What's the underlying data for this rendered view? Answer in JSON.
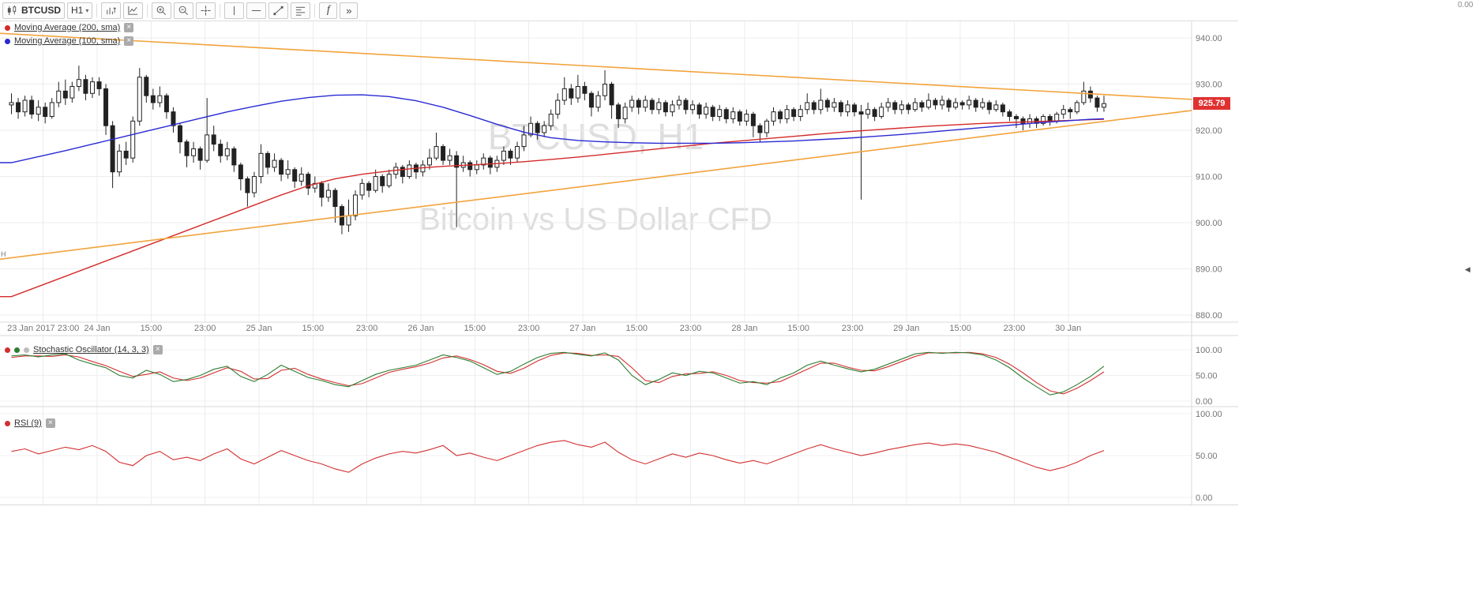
{
  "ui": {
    "close_glyph": "×",
    "caret": "▾"
  },
  "toolbar": {
    "symbol": "BTCUSD",
    "timeframe": "H1",
    "indicator_button": "f",
    "more_button": "»",
    "icons": [
      "candlestick-icon",
      "chevron-down-icon",
      "bar-chart-icon",
      "line-chart-icon",
      "zoom-in-icon",
      "zoom-out-icon",
      "crosshair-icon",
      "vertical-line-icon",
      "horizontal-line-icon",
      "trend-line-icon",
      "fibonacci-icon",
      "indicators-icon",
      "double-arrow-icon"
    ]
  },
  "main_chart": {
    "legend": [
      {
        "label": "Moving Average (200, sma)",
        "color": "#d42a2a"
      },
      {
        "label": "Moving Average (100, sma)",
        "color": "#2a2ad4"
      }
    ],
    "watermark_title": "BTCUSD, H1",
    "watermark_subtitle": "Bitcoin vs US Dollar CFD",
    "price_tag": "925.79",
    "price_axis": [
      "940.00",
      "930.00",
      "920.00",
      "910.00",
      "900.00",
      "890.00",
      "880.00"
    ],
    "time_axis": [
      "23 Jan 2017 23:00",
      "24 Jan",
      "15:00",
      "23:00",
      "25 Jan",
      "15:00",
      "23:00",
      "26 Jan",
      "15:00",
      "23:00",
      "27 Jan",
      "15:00",
      "23:00",
      "28 Jan",
      "15:00",
      "23:00",
      "29 Jan",
      "15:00",
      "23:00",
      "30 Jan"
    ]
  },
  "stochastic_panel": {
    "label": "Stochastic Oscillator (14, 3, 3)",
    "scale": [
      "100.00",
      "50.00",
      "0.00"
    ],
    "colors": {
      "k": "#2e7d32",
      "d": "#d32f2f",
      "extra_dot": "#bdbdbd"
    }
  },
  "rsi_panel": {
    "label": "RSI (9)",
    "scale": [
      "100.00",
      "50.00",
      "0.00"
    ],
    "color": "#d32f2f"
  },
  "edge_artifacts": {
    "top_right_label": "0.00",
    "right_marker": "◀",
    "left_marker": "H"
  },
  "chart_data": {
    "type": "candlestick",
    "symbol": "BTCUSD",
    "timeframe": "H1",
    "title": "Bitcoin vs US Dollar CFD",
    "last_price": 925.79,
    "price_axis_values": [
      940,
      930,
      920,
      910,
      900,
      890,
      880
    ],
    "price_range_visible": [
      878.5,
      943.6
    ],
    "osc_range": [
      0,
      100
    ],
    "candles_per_gridline": 8,
    "first_gridline_candle_index": 5,
    "time_labels": [
      "23 Jan 2017 23:00",
      "24 Jan",
      "15:00",
      "23:00",
      "25 Jan",
      "15:00",
      "23:00",
      "26 Jan",
      "15:00",
      "23:00",
      "27 Jan",
      "15:00",
      "23:00",
      "28 Jan",
      "15:00",
      "23:00",
      "29 Jan",
      "15:00",
      "23:00",
      "30 Jan"
    ],
    "candles": [
      [
        925.5,
        928,
        923.5,
        926
      ],
      [
        926,
        927,
        922.5,
        924
      ],
      [
        924,
        927.5,
        923,
        926.5
      ],
      [
        926.5,
        927.5,
        922.5,
        923.5
      ],
      [
        923.5,
        926.5,
        922,
        925
      ],
      [
        925,
        926,
        921.5,
        923
      ],
      [
        923,
        927,
        922.5,
        926
      ],
      [
        926,
        930.5,
        925,
        928.5
      ],
      [
        928.5,
        931,
        925.5,
        927
      ],
      [
        927,
        930.5,
        926,
        929.5
      ],
      [
        929.5,
        934,
        928.5,
        931
      ],
      [
        931,
        932,
        926.5,
        928
      ],
      [
        928,
        931.5,
        927,
        930.5
      ],
      [
        930.5,
        931.5,
        927.5,
        929
      ],
      [
        929,
        930,
        919,
        921
      ],
      [
        921,
        922,
        907.5,
        911
      ],
      [
        911,
        917,
        910,
        915.5
      ],
      [
        915.5,
        917.5,
        912.5,
        914
      ],
      [
        914,
        923,
        913,
        922
      ],
      [
        922,
        933.5,
        921,
        931.5
      ],
      [
        931.5,
        932,
        926,
        927.5
      ],
      [
        927.5,
        929,
        924.5,
        926
      ],
      [
        926,
        929.5,
        925,
        927.5
      ],
      [
        927.5,
        928,
        922.5,
        924
      ],
      [
        924,
        925,
        919.5,
        921
      ],
      [
        921,
        921.5,
        915,
        917.5
      ],
      [
        917.5,
        918,
        912,
        914.5
      ],
      [
        914.5,
        917.5,
        913,
        916
      ],
      [
        916,
        916.5,
        911.5,
        913.5
      ],
      [
        913.5,
        927,
        913,
        919
      ],
      [
        919,
        921,
        915.5,
        917
      ],
      [
        917,
        918,
        913,
        914.5
      ],
      [
        914.5,
        917.5,
        913.5,
        916
      ],
      [
        916,
        916.5,
        911,
        912.5
      ],
      [
        912.5,
        913,
        907,
        909.5
      ],
      [
        909.5,
        910,
        903.5,
        906.5
      ],
      [
        906.5,
        911,
        905.5,
        910
      ],
      [
        910,
        917,
        908.5,
        915
      ],
      [
        915,
        915.5,
        910.5,
        912
      ],
      [
        912,
        915,
        911,
        913.5
      ],
      [
        913.5,
        914,
        909,
        910.5
      ],
      [
        910.5,
        913.5,
        909.5,
        911.5
      ],
      [
        911.5,
        912,
        907.5,
        909
      ],
      [
        909,
        912,
        908,
        910.5
      ],
      [
        910.5,
        911,
        906,
        907.5
      ],
      [
        907.5,
        910,
        906.5,
        908.5
      ],
      [
        908.5,
        909,
        903.5,
        905.5
      ],
      [
        905.5,
        908.5,
        904.5,
        907
      ],
      [
        907,
        907.5,
        900,
        903.5
      ],
      [
        903.5,
        904,
        897.5,
        899.5
      ],
      [
        899.5,
        905,
        898,
        901.5
      ],
      [
        901.5,
        907,
        900.5,
        906
      ],
      [
        906,
        909.5,
        905,
        908.5
      ],
      [
        908.5,
        909,
        905.5,
        907
      ],
      [
        907,
        911.5,
        906.5,
        910
      ],
      [
        910,
        910.5,
        906.5,
        908
      ],
      [
        908,
        911.5,
        907.5,
        910.5
      ],
      [
        910.5,
        913,
        909.5,
        912
      ],
      [
        912,
        912.5,
        908.5,
        910
      ],
      [
        910,
        913.5,
        909.5,
        912.5
      ],
      [
        912.5,
        913,
        909.5,
        911
      ],
      [
        911,
        913.5,
        910,
        912.5
      ],
      [
        912.5,
        916,
        911.5,
        914
      ],
      [
        914,
        919.5,
        913.5,
        916.5
      ],
      [
        916.5,
        917,
        912.5,
        913.5
      ],
      [
        913.5,
        916,
        912.5,
        914.5
      ],
      [
        914.5,
        915.5,
        899,
        912
      ],
      [
        912,
        914.5,
        911,
        913
      ],
      [
        913,
        913.5,
        910,
        911.5
      ],
      [
        911.5,
        913.5,
        910.5,
        912.5
      ],
      [
        912.5,
        915,
        911.5,
        914
      ],
      [
        914,
        914.5,
        910.5,
        912
      ],
      [
        912,
        914.5,
        911,
        913.5
      ],
      [
        913.5,
        916.5,
        912.5,
        915.5
      ],
      [
        915.5,
        916,
        912.5,
        914
      ],
      [
        914,
        917.5,
        913,
        916.5
      ],
      [
        916.5,
        921,
        915.5,
        919
      ],
      [
        919,
        923,
        918.5,
        921.5
      ],
      [
        921.5,
        922,
        918,
        919.5
      ],
      [
        919.5,
        922,
        918.5,
        921
      ],
      [
        921,
        924.5,
        920,
        923.5
      ],
      [
        923.5,
        928,
        922.5,
        926.5
      ],
      [
        926.5,
        931.5,
        925.5,
        929
      ],
      [
        929,
        930,
        925.5,
        927
      ],
      [
        927,
        932,
        926,
        929.5
      ],
      [
        929.5,
        930.5,
        926.5,
        928
      ],
      [
        928,
        928.5,
        923,
        925
      ],
      [
        925,
        928.5,
        924,
        927.5
      ],
      [
        927.5,
        933,
        926.5,
        930
      ],
      [
        930,
        930.5,
        922.5,
        925.5
      ],
      [
        925.5,
        926,
        920.5,
        922.5
      ],
      [
        922.5,
        926,
        921.5,
        925
      ],
      [
        925,
        927.5,
        924,
        926.5
      ],
      [
        926.5,
        927,
        923.5,
        925
      ],
      [
        925,
        927.5,
        924,
        926.5
      ],
      [
        926.5,
        927,
        923.5,
        924.5
      ],
      [
        924.5,
        927,
        923.5,
        926
      ],
      [
        926,
        926.5,
        923,
        924
      ],
      [
        924,
        926.5,
        923,
        925.5
      ],
      [
        925.5,
        927.5,
        924.5,
        926.5
      ],
      [
        926.5,
        927,
        923.5,
        924.5
      ],
      [
        924.5,
        926.5,
        923.5,
        925.5
      ],
      [
        925.5,
        926,
        922.5,
        923.5
      ],
      [
        923.5,
        926,
        922.5,
        925
      ],
      [
        925,
        925.5,
        922,
        923
      ],
      [
        923,
        925.5,
        922,
        924.5
      ],
      [
        924.5,
        925,
        921.5,
        922.5
      ],
      [
        922.5,
        925,
        921.5,
        924
      ],
      [
        924,
        924.5,
        921,
        922
      ],
      [
        922,
        924.5,
        921,
        923.5
      ],
      [
        923.5,
        924,
        918.5,
        921
      ],
      [
        921,
        921.5,
        917.5,
        919.5
      ],
      [
        919.5,
        922.5,
        918.5,
        922
      ],
      [
        922,
        925,
        921,
        924
      ],
      [
        924,
        924.5,
        921.5,
        922.5
      ],
      [
        922.5,
        925.5,
        921.5,
        924.5
      ],
      [
        924.5,
        925,
        922,
        923
      ],
      [
        923,
        925.5,
        922,
        924.5
      ],
      [
        924.5,
        928,
        923.5,
        926
      ],
      [
        926,
        926.5,
        923.5,
        924.5
      ],
      [
        924.5,
        929,
        923.5,
        926.5
      ],
      [
        926.5,
        927,
        924,
        925
      ],
      [
        925,
        927,
        924,
        926
      ],
      [
        926,
        926.5,
        923,
        924
      ],
      [
        924,
        926.5,
        923,
        925.5
      ],
      [
        925.5,
        926,
        923,
        924
      ],
      [
        924,
        925.5,
        905,
        923.5
      ],
      [
        923.5,
        926,
        922.5,
        924.5
      ],
      [
        924.5,
        925,
        922,
        923
      ],
      [
        923,
        926,
        922.5,
        925
      ],
      [
        925,
        927,
        924,
        926
      ],
      [
        926,
        926.5,
        923.5,
        924.5
      ],
      [
        924.5,
        926.5,
        923.5,
        925.5
      ],
      [
        925.5,
        926,
        923.5,
        924.5
      ],
      [
        924.5,
        927,
        924,
        926
      ],
      [
        926,
        926.5,
        924,
        925
      ],
      [
        925,
        928,
        924.5,
        926.5
      ],
      [
        926.5,
        927,
        924.5,
        925.5
      ],
      [
        925.5,
        927.5,
        924.5,
        926.5
      ],
      [
        926.5,
        927,
        924,
        925
      ],
      [
        925,
        927,
        924.5,
        926
      ],
      [
        926,
        926.5,
        924.5,
        925.5
      ],
      [
        925.5,
        927.5,
        924.5,
        926.5
      ],
      [
        926.5,
        927,
        924,
        925
      ],
      [
        925,
        927,
        924.5,
        926
      ],
      [
        926,
        926.5,
        923.5,
        924.5
      ],
      [
        924.5,
        926.5,
        924,
        925.5
      ],
      [
        925.5,
        926,
        923,
        924
      ],
      [
        924,
        924.5,
        922,
        923
      ],
      [
        923,
        923.5,
        920.5,
        922.5
      ],
      [
        922.5,
        923,
        920,
        921.5
      ],
      [
        921.5,
        923.5,
        920.5,
        922.5
      ],
      [
        922.5,
        923,
        920.5,
        921.5
      ],
      [
        921.5,
        923.5,
        921,
        923
      ],
      [
        923,
        923.5,
        921,
        922
      ],
      [
        922,
        924,
        921.5,
        923.5
      ],
      [
        923.5,
        925.5,
        922.5,
        924.5
      ],
      [
        924.5,
        925,
        922.5,
        924
      ],
      [
        924,
        926.5,
        923.5,
        926
      ],
      [
        926,
        930.5,
        925.5,
        928.5
      ],
      [
        928.5,
        929.5,
        926,
        927
      ],
      [
        927,
        927.5,
        924,
        925
      ],
      [
        925,
        927.5,
        924,
        925.79
      ]
    ],
    "ma200": {
      "period": 200,
      "color": "#d42a2a",
      "index_step": 4,
      "values": [
        884.0,
        886.2,
        888.4,
        890.6,
        892.8,
        895.0,
        897.2,
        899.4,
        901.6,
        903.8,
        906.0,
        908.0,
        909.5,
        910.5,
        911.2,
        911.8,
        912.2,
        912.5,
        912.8,
        913.2,
        913.7,
        914.2,
        914.8,
        915.4,
        916.0,
        916.6,
        917.2,
        917.7,
        918.2,
        918.7,
        919.2,
        919.7,
        920.1,
        920.5,
        920.9,
        921.2,
        921.5,
        921.7,
        921.9,
        922.1,
        922.3,
        922.4
      ]
    },
    "ma100": {
      "period": 100,
      "color": "#2a2ad4",
      "index_step": 4,
      "values": [
        913.0,
        914.3,
        915.6,
        917.0,
        918.4,
        919.8,
        921.2,
        922.6,
        924.0,
        925.2,
        926.3,
        927.1,
        927.6,
        927.7,
        927.3,
        926.4,
        925.0,
        923.2,
        921.3,
        919.6,
        918.4,
        917.8,
        917.5,
        917.3,
        917.2,
        917.2,
        917.2,
        917.3,
        917.5,
        917.7,
        918.0,
        918.3,
        918.7,
        919.1,
        919.6,
        920.1,
        920.6,
        921.1,
        921.6,
        922.0,
        922.4,
        922.5
      ]
    },
    "trendlines": [
      {
        "name": "upper-triangle-line",
        "color": "#f2a33c",
        "price_start": 941.0,
        "price_end": 926.7
      },
      {
        "name": "lower-triangle-line",
        "color": "#f2a33c",
        "price_start": 892.1,
        "price_end": 924.3
      }
    ],
    "stochastic": {
      "params": [
        14,
        3,
        3
      ],
      "index_step": 2,
      "k": [
        88,
        90,
        86,
        90,
        92,
        80,
        72,
        65,
        50,
        45,
        60,
        52,
        38,
        42,
        50,
        62,
        68,
        48,
        38,
        52,
        70,
        58,
        46,
        40,
        32,
        28,
        40,
        52,
        60,
        65,
        70,
        80,
        90,
        85,
        78,
        65,
        52,
        58,
        72,
        85,
        93,
        95,
        91,
        88,
        94,
        80,
        50,
        32,
        42,
        55,
        50,
        58,
        55,
        45,
        35,
        38,
        32,
        45,
        55,
        70,
        78,
        70,
        63,
        57,
        62,
        72,
        82,
        92,
        95,
        93,
        95,
        94,
        90,
        80,
        65,
        45,
        28,
        12,
        18,
        32,
        48,
        68
      ],
      "d": [
        85,
        88,
        88,
        87,
        90,
        86,
        77,
        69,
        58,
        48,
        52,
        57,
        45,
        40,
        45,
        55,
        65,
        58,
        43,
        44,
        60,
        64,
        52,
        43,
        36,
        30,
        34,
        45,
        56,
        62,
        67,
        74,
        84,
        88,
        81,
        71,
        58,
        54,
        64,
        78,
        89,
        94,
        93,
        89,
        90,
        87,
        65,
        40,
        36,
        48,
        53,
        54,
        57,
        50,
        40,
        36,
        35,
        38,
        50,
        62,
        74,
        74,
        66,
        60,
        59,
        67,
        77,
        87,
        94,
        94,
        94,
        95,
        92,
        85,
        72,
        55,
        36,
        20,
        14,
        25,
        40,
        57
      ]
    },
    "rsi": {
      "period": 9,
      "index_step": 2,
      "values": [
        55,
        58,
        52,
        56,
        60,
        57,
        62,
        55,
        42,
        38,
        50,
        55,
        45,
        48,
        44,
        52,
        58,
        46,
        40,
        48,
        56,
        50,
        44,
        40,
        34,
        30,
        40,
        47,
        52,
        55,
        53,
        57,
        62,
        50,
        53,
        48,
        44,
        50,
        56,
        62,
        66,
        68,
        63,
        60,
        66,
        54,
        45,
        40,
        46,
        52,
        48,
        53,
        50,
        45,
        41,
        44,
        40,
        46,
        52,
        58,
        63,
        58,
        54,
        50,
        53,
        57,
        60,
        63,
        65,
        62,
        64,
        62,
        58,
        54,
        48,
        42,
        36,
        32,
        36,
        42,
        50,
        56
      ]
    }
  }
}
